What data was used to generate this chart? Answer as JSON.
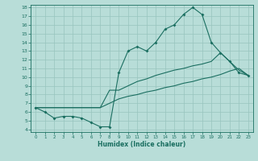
{
  "xlabel": "Humidex (Indice chaleur)",
  "xlim": [
    -0.5,
    23.5
  ],
  "ylim": [
    3.7,
    18.3
  ],
  "yticks": [
    4,
    5,
    6,
    7,
    8,
    9,
    10,
    11,
    12,
    13,
    14,
    15,
    16,
    17,
    18
  ],
  "xticks": [
    0,
    1,
    2,
    3,
    4,
    5,
    6,
    7,
    8,
    9,
    10,
    11,
    12,
    13,
    14,
    15,
    16,
    17,
    18,
    19,
    20,
    21,
    22,
    23
  ],
  "bg_color": "#b8ddd8",
  "line_color": "#1a6e60",
  "grid_color": "#98c4be",
  "line1_x": [
    0,
    1,
    2,
    3,
    4,
    5,
    6,
    7,
    8,
    9,
    10,
    11,
    12,
    13,
    14,
    15,
    16,
    17,
    18,
    19,
    20,
    21,
    22,
    23
  ],
  "line1_y": [
    6.5,
    6.0,
    5.3,
    5.5,
    5.5,
    5.3,
    4.8,
    4.3,
    4.3,
    10.5,
    13.0,
    13.5,
    13.0,
    14.0,
    15.5,
    16.0,
    17.2,
    18.0,
    17.2,
    14.0,
    12.8,
    11.8,
    10.5,
    10.2
  ],
  "line2_x": [
    0,
    7,
    8,
    9,
    10,
    11,
    12,
    13,
    14,
    15,
    16,
    17,
    18,
    19,
    20,
    21,
    22,
    23
  ],
  "line2_y": [
    6.5,
    6.5,
    8.5,
    8.5,
    9.0,
    9.5,
    9.8,
    10.2,
    10.5,
    10.8,
    11.0,
    11.3,
    11.5,
    11.8,
    12.8,
    11.8,
    10.8,
    10.2
  ],
  "line3_x": [
    0,
    7,
    8,
    9,
    10,
    11,
    12,
    13,
    14,
    15,
    16,
    17,
    18,
    19,
    20,
    21,
    22,
    23
  ],
  "line3_y": [
    6.5,
    6.5,
    7.0,
    7.5,
    7.8,
    8.0,
    8.3,
    8.5,
    8.8,
    9.0,
    9.3,
    9.5,
    9.8,
    10.0,
    10.3,
    10.7,
    11.0,
    10.2
  ]
}
